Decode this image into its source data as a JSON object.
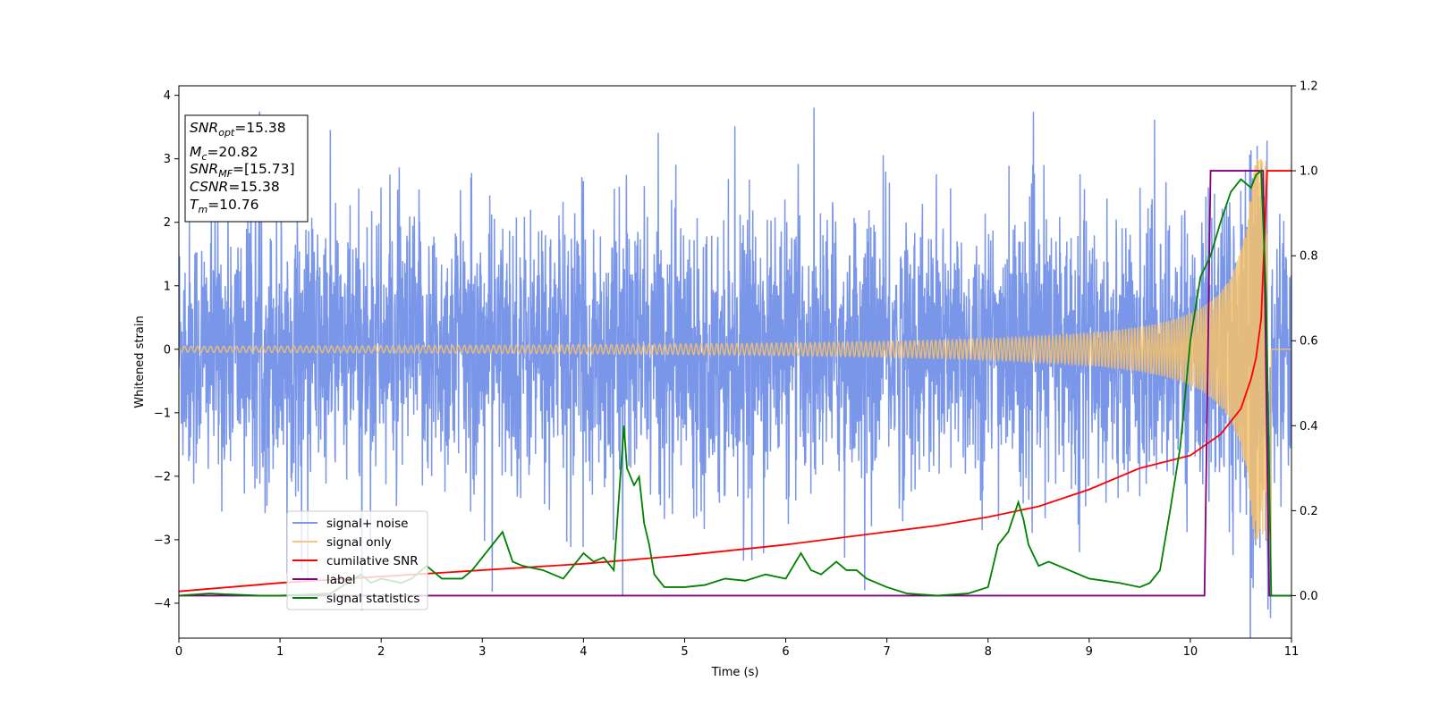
{
  "chart_data": {
    "type": "line",
    "xlabel": "Time (s)",
    "ylabel": "Whitened strain",
    "xlim": [
      0,
      11
    ],
    "ylim_left": [
      -4.55,
      4.15
    ],
    "ylim_right": [
      -0.1,
      1.2
    ],
    "x_ticks": [
      "0",
      "1",
      "2",
      "3",
      "4",
      "5",
      "6",
      "7",
      "8",
      "9",
      "10",
      "11"
    ],
    "y_left_ticks": [
      "4",
      "3",
      "2",
      "1",
      "0",
      "−1",
      "−2",
      "−3",
      "−4"
    ],
    "y_right_ticks": [
      "1.2",
      "1.0",
      "0.8",
      "0.6",
      "0.4",
      "0.2",
      "0.0"
    ],
    "grid": false,
    "legend_position": "lower-left",
    "annotation": [
      {
        "base": "SNR",
        "sub": "opt",
        "value": "=15.38"
      },
      {
        "base": "M",
        "sub": "c",
        "value": "=20.82"
      },
      {
        "base": "SNR",
        "sub": "MF",
        "value": "=[15.73]"
      },
      {
        "base": "CSNR",
        "sub": "",
        "value": "=15.38"
      },
      {
        "base": "T",
        "sub": "m",
        "value": "=10.76"
      }
    ],
    "series": [
      {
        "name": "signal+ noise",
        "axis": "left",
        "color": "#6f8de6",
        "style": "noise, amplitude ~±2.3 with peaks to ±3.8",
        "y_range": [
          -4.15,
          3.78
        ]
      },
      {
        "name": "signal only",
        "axis": "left",
        "color": "#f6c26b",
        "style": "chirp, amplitude growing to ~3 at 10.76 s",
        "y_range": [
          -2.9,
          2.95
        ]
      },
      {
        "name": "cumilative SNR",
        "axis": "right",
        "color": "#ff0000",
        "x": [
          0,
          1,
          2,
          3,
          4,
          5,
          6,
          7,
          7.5,
          8,
          8.5,
          9,
          9.5,
          10,
          10.3,
          10.5,
          10.6,
          10.65,
          10.7,
          10.76,
          10.8,
          11
        ],
        "y": [
          0.01,
          0.03,
          0.045,
          0.06,
          0.075,
          0.095,
          0.12,
          0.15,
          0.165,
          0.185,
          0.21,
          0.25,
          0.3,
          0.33,
          0.38,
          0.44,
          0.51,
          0.56,
          0.65,
          1.0,
          1.0,
          1.0
        ]
      },
      {
        "name": "label",
        "axis": "right",
        "color": "#800080",
        "x": [
          0,
          10.14,
          10.2,
          10.72,
          10.78,
          11
        ],
        "y": [
          0,
          0,
          1.0,
          1.0,
          0,
          0
        ]
      },
      {
        "name": "signal statistics",
        "axis": "right",
        "color": "#008000",
        "x": [
          0,
          0.3,
          0.5,
          0.8,
          1.0,
          1.2,
          1.5,
          1.8,
          1.9,
          2.0,
          2.2,
          2.3,
          2.45,
          2.6,
          2.8,
          2.9,
          3.0,
          3.1,
          3.2,
          3.3,
          3.4,
          3.6,
          3.8,
          4.0,
          4.1,
          4.2,
          4.3,
          4.4,
          4.43,
          4.5,
          4.55,
          4.6,
          4.65,
          4.7,
          4.8,
          4.9,
          5.0,
          5.2,
          5.4,
          5.6,
          5.8,
          6.0,
          6.15,
          6.25,
          6.35,
          6.5,
          6.6,
          6.7,
          6.8,
          7.0,
          7.2,
          7.5,
          7.8,
          8.0,
          8.1,
          8.2,
          8.3,
          8.35,
          8.4,
          8.5,
          8.6,
          8.8,
          9.0,
          9.3,
          9.5,
          9.6,
          9.7,
          9.8,
          9.9,
          10.0,
          10.1,
          10.2,
          10.3,
          10.4,
          10.5,
          10.55,
          10.6,
          10.65,
          10.7,
          10.75,
          10.8,
          11
        ],
        "y": [
          0.0,
          0.005,
          0.003,
          0.0,
          0.0,
          0.002,
          0.005,
          0.05,
          0.03,
          0.04,
          0.03,
          0.04,
          0.07,
          0.04,
          0.04,
          0.06,
          0.09,
          0.12,
          0.15,
          0.08,
          0.07,
          0.06,
          0.04,
          0.1,
          0.08,
          0.09,
          0.06,
          0.4,
          0.3,
          0.26,
          0.28,
          0.17,
          0.12,
          0.05,
          0.02,
          0.02,
          0.02,
          0.025,
          0.04,
          0.035,
          0.05,
          0.04,
          0.1,
          0.06,
          0.05,
          0.08,
          0.06,
          0.06,
          0.04,
          0.02,
          0.005,
          0.0,
          0.005,
          0.02,
          0.12,
          0.15,
          0.22,
          0.18,
          0.12,
          0.07,
          0.08,
          0.06,
          0.04,
          0.03,
          0.02,
          0.03,
          0.06,
          0.2,
          0.35,
          0.6,
          0.75,
          0.8,
          0.88,
          0.95,
          0.98,
          0.97,
          0.96,
          0.99,
          1.0,
          0.7,
          0.0,
          0.0
        ]
      }
    ]
  }
}
